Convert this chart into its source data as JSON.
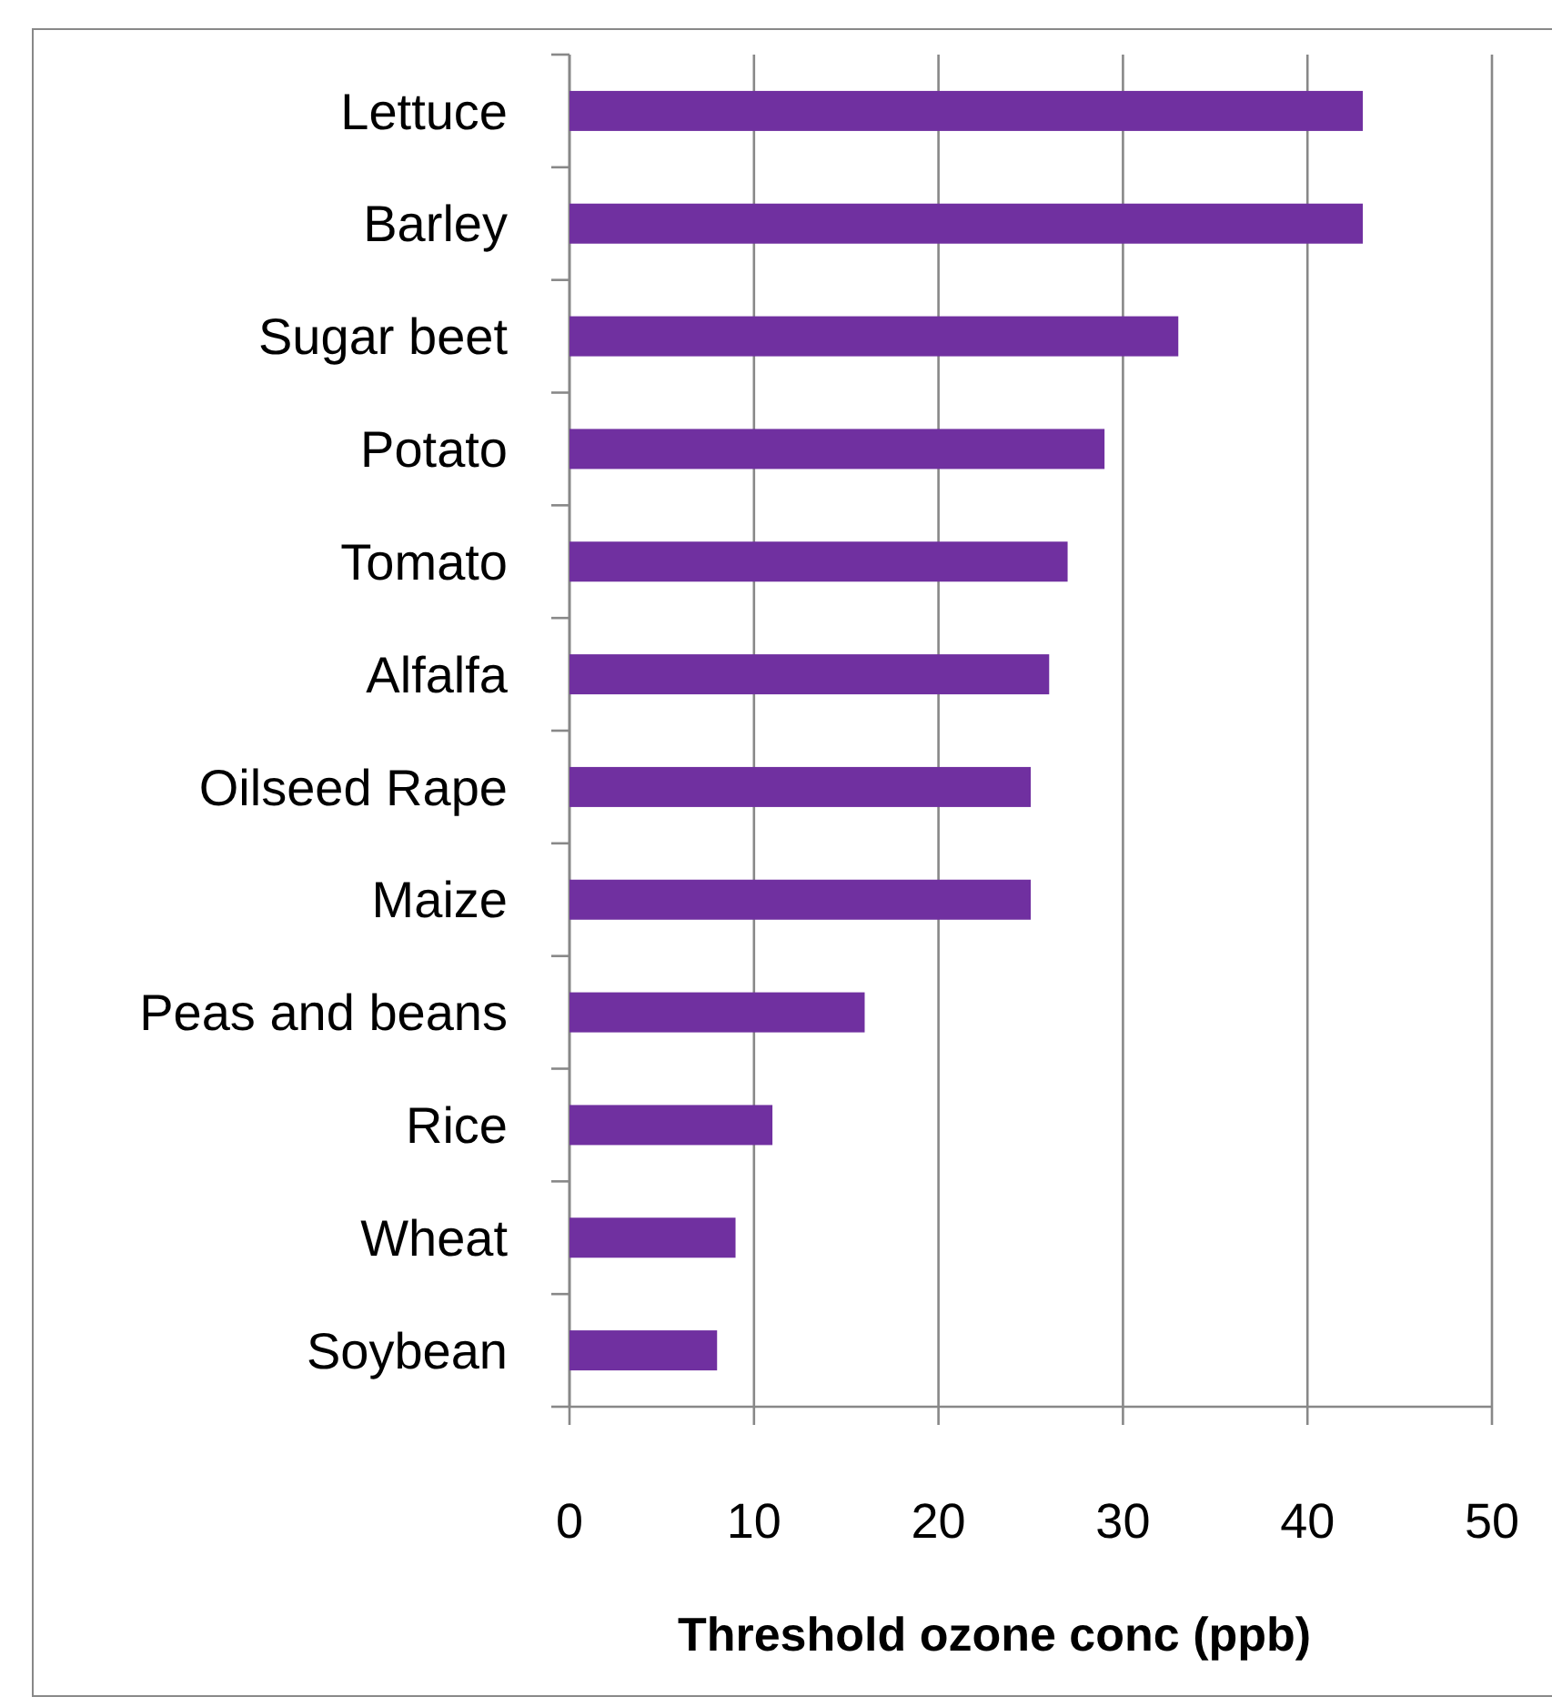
{
  "chart_data": {
    "type": "bar",
    "orientation": "horizontal",
    "xlabel": "Threshold ozone conc (ppb)",
    "categories": [
      "Lettuce",
      "Barley",
      "Sugar beet",
      "Potato",
      "Tomato",
      "Alfalfa",
      "Oilseed Rape",
      "Maize",
      "Peas and beans",
      "Rice",
      "Wheat",
      "Soybean"
    ],
    "values": [
      43,
      43,
      33,
      29,
      27,
      26,
      25,
      25,
      16,
      11,
      9,
      8
    ],
    "color": "#7030a0",
    "xlim": [
      0,
      50
    ],
    "xticks": [
      0,
      10,
      20,
      30,
      40,
      50
    ],
    "grid": "x"
  }
}
